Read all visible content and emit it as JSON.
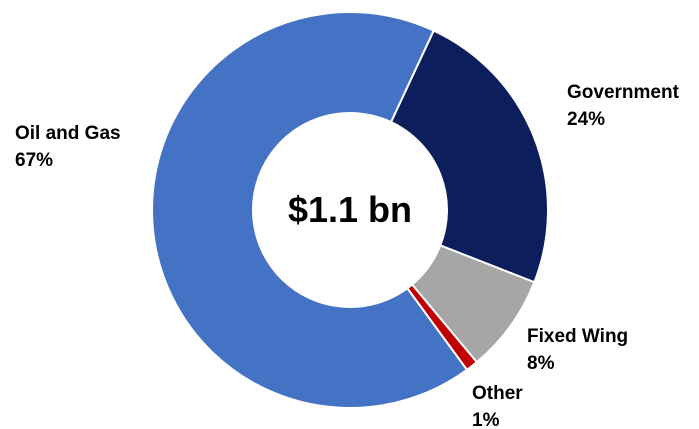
{
  "chart_data": {
    "type": "pie",
    "donut": true,
    "center_text": "$1.1 bn",
    "slices": [
      {
        "name": "Government",
        "value": 24,
        "value_label": "24%",
        "color": "#0c1e5b"
      },
      {
        "name": "Fixed Wing",
        "value": 8,
        "value_label": "8%",
        "color": "#a6a6a6"
      },
      {
        "name": "Other",
        "value": 1,
        "value_label": "1%",
        "color": "#c00000"
      },
      {
        "name": "Oil and Gas",
        "value": 67,
        "value_label": "67%",
        "color": "#4472c4"
      }
    ],
    "start_angle_deg": 25,
    "direction": "clockwise",
    "legend": "none"
  }
}
